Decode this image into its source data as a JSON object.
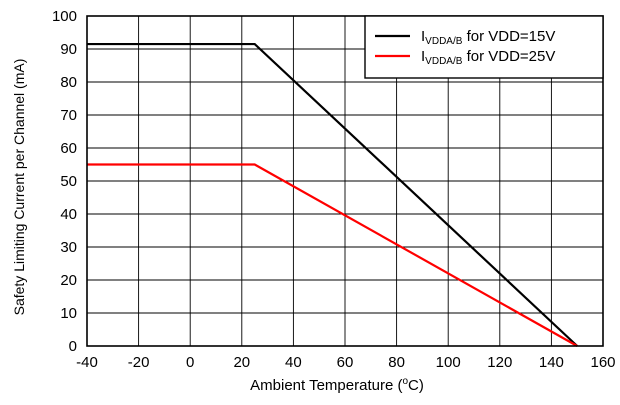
{
  "chart_data": {
    "type": "line",
    "title": "",
    "xlabel": "Ambient Temperature (°C)",
    "xlabel_parts": {
      "before": "Ambient Temperature (",
      "sup": "o",
      "after": "C)"
    },
    "ylabel": "Safety Limiting Current per Channel (mA)",
    "xlim": [
      -40,
      160
    ],
    "ylim": [
      0,
      100
    ],
    "x_ticks": [
      -40,
      -20,
      0,
      20,
      40,
      60,
      80,
      100,
      120,
      140,
      160
    ],
    "y_ticks": [
      0,
      10,
      20,
      30,
      40,
      50,
      60,
      70,
      80,
      90,
      100
    ],
    "grid": true,
    "legend_position": "top-right",
    "series": [
      {
        "name": "IVDDA/B for VDD=15V",
        "label_main": "I",
        "label_sub": "VDDA/B",
        "label_rest": " for VDD=15V",
        "color": "#000000",
        "points": [
          {
            "x": -40,
            "y": 91.5
          },
          {
            "x": 25,
            "y": 91.5
          },
          {
            "x": 150,
            "y": 0
          }
        ]
      },
      {
        "name": "IVDDA/B for VDD=25V",
        "label_main": "I",
        "label_sub": "VDDA/B",
        "label_rest": " for VDD=25V",
        "color": "#ff0000",
        "points": [
          {
            "x": -40,
            "y": 55
          },
          {
            "x": 25,
            "y": 55
          },
          {
            "x": 150,
            "y": 0
          }
        ]
      }
    ]
  }
}
